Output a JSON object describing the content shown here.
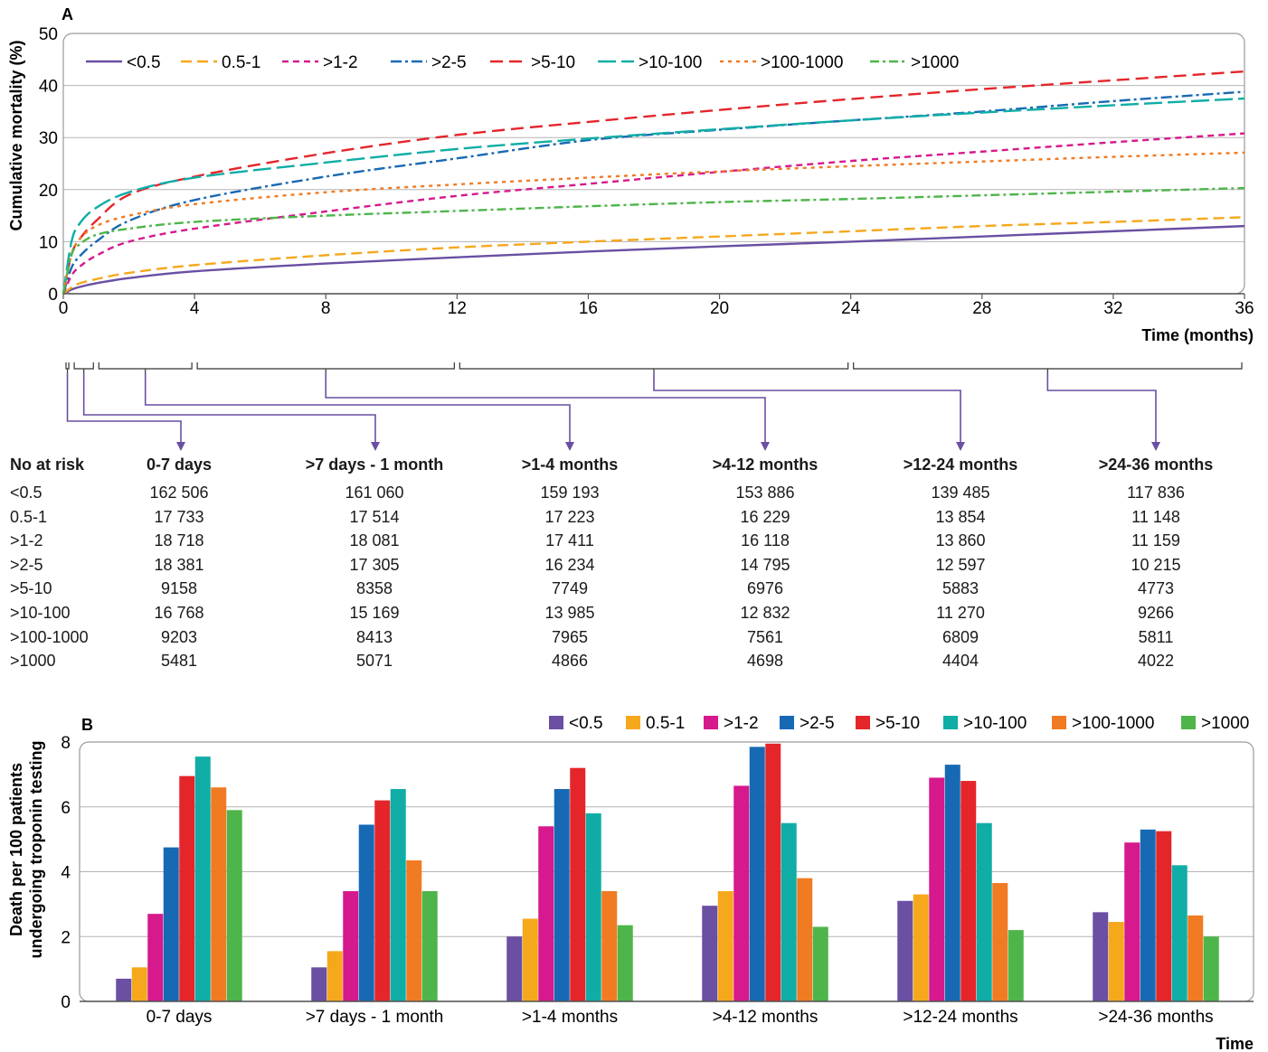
{
  "colors": {
    "<0.5": "#6a4fa3",
    "0.5-1": "#f6a81d",
    ">1-2": "#d6198c",
    ">2-5": "#1769b4",
    ">5-10": "#e4262b",
    ">10-100": "#10ada6",
    ">100-1000": "#f07b22",
    ">1000": "#4db54a"
  },
  "panel_a": {
    "label": "A",
    "legend": [
      "<0.5",
      "0.5-1",
      ">1-2",
      ">2-5",
      ">5-10",
      ">10-100",
      ">100-1000",
      ">1000"
    ],
    "intervals": [
      "0-7 days",
      ">7 days - 1 month",
      ">1-4 months",
      ">4-12 months",
      ">12-24 months",
      ">24-36 months"
    ]
  },
  "risk_table": {
    "header": "No at risk",
    "columns": [
      "0-7 days",
      ">7 days - 1 month",
      ">1-4 months",
      ">4-12 months",
      ">12-24 months",
      ">24-36 months"
    ],
    "rows": [
      {
        "group": "<0.5",
        "values": [
          "162 506",
          "161 060",
          "159 193",
          "153 886",
          "139 485",
          "117 836"
        ]
      },
      {
        "group": "0.5-1",
        "values": [
          "17 733",
          "17 514",
          "17 223",
          "16 229",
          "13 854",
          "11 148"
        ]
      },
      {
        "group": ">1-2",
        "values": [
          "18 718",
          "18 081",
          "17 411",
          "16 118",
          "13 860",
          "11 159"
        ]
      },
      {
        "group": ">2-5",
        "values": [
          "18 381",
          "17 305",
          "16 234",
          "14 795",
          "12 597",
          "10 215"
        ]
      },
      {
        "group": ">5-10",
        "values": [
          "9158",
          "8358",
          "7749",
          "6976",
          "5883",
          "4773"
        ]
      },
      {
        "group": ">10-100",
        "values": [
          "16 768",
          "15 169",
          "13 985",
          "12 832",
          "11 270",
          "9266"
        ]
      },
      {
        "group": ">100-1000",
        "values": [
          "9203",
          "8413",
          "7965",
          "7561",
          "6809",
          "5811"
        ]
      },
      {
        "group": ">1000",
        "values": [
          "5481",
          "5071",
          "4866",
          "4698",
          "4404",
          "4022"
        ]
      }
    ]
  },
  "chart_data": [
    {
      "type": "line",
      "label": "A",
      "xlabel": "Time (months)",
      "ylabel": "Cumulative mortality (%)",
      "xlim": [
        0,
        36
      ],
      "ylim": [
        0,
        50
      ],
      "xticks": [
        0,
        4,
        8,
        12,
        16,
        20,
        24,
        28,
        32,
        36
      ],
      "yticks": [
        0,
        10,
        20,
        30,
        40,
        50
      ],
      "grid": "horizontal",
      "legend_position": "top",
      "series": [
        {
          "name": "<0.5",
          "x": [
            0,
            0.25,
            0.5,
            1,
            2,
            4,
            8,
            12,
            16,
            20,
            24,
            28,
            32,
            36
          ],
          "y": [
            0,
            0.8,
            1.3,
            2,
            3,
            4.3,
            5.8,
            7,
            8.1,
            9.1,
            10,
            11,
            12,
            13
          ]
        },
        {
          "name": "0.5-1",
          "x": [
            0,
            0.25,
            0.5,
            1,
            2,
            4,
            8,
            12,
            16,
            20,
            24,
            28,
            32,
            36
          ],
          "y": [
            0,
            1.2,
            2,
            2.8,
            4,
            5.5,
            7.4,
            8.9,
            10,
            11,
            12,
            13,
            13.8,
            14.7
          ]
        },
        {
          "name": ">1-2",
          "x": [
            0,
            0.25,
            0.5,
            1,
            2,
            4,
            8,
            12,
            16,
            20,
            24,
            28,
            32,
            36
          ],
          "y": [
            0,
            3.5,
            5.2,
            7.3,
            10,
            12.5,
            15.8,
            18.8,
            21.1,
            23.4,
            25.5,
            27.3,
            29.1,
            30.8
          ]
        },
        {
          "name": ">2-5",
          "x": [
            0,
            0.25,
            0.5,
            1,
            2,
            4,
            8,
            12,
            16,
            20,
            24,
            28,
            32,
            36
          ],
          "y": [
            0,
            5,
            7.2,
            10,
            14,
            18,
            22.5,
            26,
            29.5,
            31.5,
            33.3,
            35,
            37,
            38.8
          ]
        },
        {
          "name": ">5-10",
          "x": [
            0,
            0.25,
            0.5,
            1,
            2,
            4,
            8,
            12,
            16,
            20,
            24,
            28,
            32,
            36
          ],
          "y": [
            0,
            7.5,
            10.5,
            14,
            19,
            22.5,
            27,
            30.5,
            33,
            35.3,
            37.4,
            39.3,
            41,
            42.7
          ]
        },
        {
          "name": ">10-100",
          "x": [
            0,
            0.25,
            0.5,
            1,
            2,
            4,
            8,
            12,
            16,
            20,
            24,
            28,
            32,
            36
          ],
          "y": [
            0,
            10,
            13.5,
            16.5,
            19.5,
            22.3,
            25.2,
            27.8,
            29.8,
            31.6,
            33.3,
            34.8,
            36.2,
            37.5
          ]
        },
        {
          "name": ">100-1000",
          "x": [
            0,
            0.25,
            0.5,
            1,
            2,
            4,
            8,
            12,
            16,
            20,
            24,
            28,
            32,
            36
          ],
          "y": [
            0,
            7.5,
            10.5,
            13,
            15,
            17.2,
            19.5,
            21,
            22.3,
            23.5,
            24.5,
            25.4,
            26.3,
            27.1
          ]
        },
        {
          "name": ">1000",
          "x": [
            0,
            0.25,
            0.5,
            1,
            2,
            4,
            8,
            12,
            16,
            20,
            24,
            28,
            32,
            36
          ],
          "y": [
            0,
            7.5,
            9.5,
            11.3,
            12.5,
            13.8,
            15,
            15.9,
            16.8,
            17.6,
            18.2,
            18.9,
            19.6,
            20.3
          ]
        }
      ]
    },
    {
      "type": "bar",
      "label": "B",
      "xlabel": "Time",
      "ylabel": "Death per 100 patients undergoing troponin testing",
      "ylim": [
        0,
        8
      ],
      "yticks": [
        0,
        2,
        4,
        6,
        8
      ],
      "grid": "horizontal",
      "legend_position": "top-right",
      "categories": [
        "0-7 days",
        ">7 days - 1 month",
        ">1-4 months",
        ">4-12 months",
        ">12-24 months",
        ">24-36 months"
      ],
      "series": [
        {
          "name": "<0.5",
          "values": [
            0.7,
            1.05,
            2.0,
            2.95,
            3.1,
            2.75
          ]
        },
        {
          "name": "0.5-1",
          "values": [
            1.05,
            1.55,
            2.55,
            3.4,
            3.3,
            2.45
          ]
        },
        {
          "name": ">1-2",
          "values": [
            2.7,
            3.4,
            5.4,
            6.65,
            6.9,
            4.9
          ]
        },
        {
          "name": ">2-5",
          "values": [
            4.75,
            5.45,
            6.55,
            7.85,
            7.3,
            5.3
          ]
        },
        {
          "name": ">5-10",
          "values": [
            6.95,
            6.2,
            7.2,
            7.95,
            6.8,
            5.25
          ]
        },
        {
          "name": ">10-100",
          "values": [
            7.55,
            6.55,
            5.8,
            5.5,
            5.5,
            4.2
          ]
        },
        {
          "name": ">100-1000",
          "values": [
            6.6,
            4.35,
            3.4,
            3.8,
            3.65,
            2.65
          ]
        },
        {
          "name": ">1000",
          "values": [
            5.9,
            3.4,
            2.35,
            2.3,
            2.2,
            2.0
          ]
        }
      ]
    }
  ]
}
